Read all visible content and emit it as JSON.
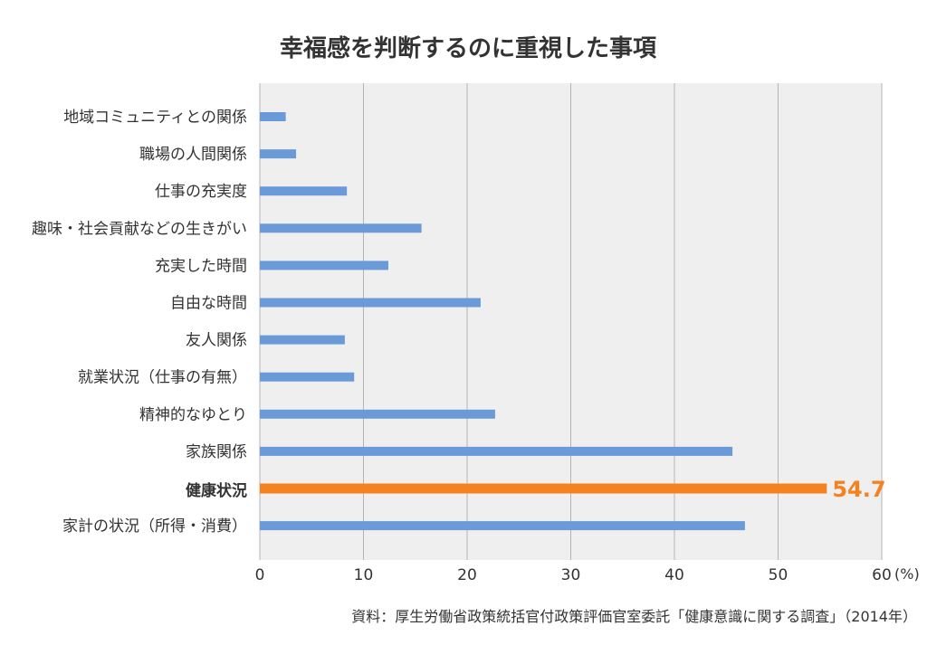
{
  "chart_data": {
    "type": "bar",
    "orientation": "horizontal",
    "title": "幸福感を判断するのに重視した事項",
    "categories": [
      "地域コミュニティとの関係",
      "職場の人間関係",
      "仕事の充実度",
      "趣味・社会貢献などの生きがい",
      "充実した時間",
      "自由な時間",
      "友人関係",
      "就業状況（仕事の有無）",
      "精神的なゆとり",
      "家族関係",
      "健康状況",
      "家計の状況（所得・消費）"
    ],
    "values": [
      2.5,
      3.5,
      8.4,
      15.6,
      12.4,
      21.3,
      8.2,
      9.1,
      22.7,
      45.6,
      54.7,
      46.8
    ],
    "highlight": {
      "category": "健康状況",
      "value_label": "54.7",
      "color": "#f5821f"
    },
    "xlim": [
      0,
      60
    ],
    "xticks": [
      "0",
      "10",
      "20",
      "30",
      "40",
      "50",
      "60"
    ],
    "unit": "(%)",
    "grid": true,
    "legend": "none",
    "source": "資料：厚生労働省政策統括官付政策評価官室委託「健康意識に関する調査」（2014年）"
  },
  "colors": {
    "bar": "#6a9bd8",
    "highlight": "#f5821f",
    "plot_background": "#efefef",
    "grid": "#b4b4b4",
    "text": "#333333"
  }
}
